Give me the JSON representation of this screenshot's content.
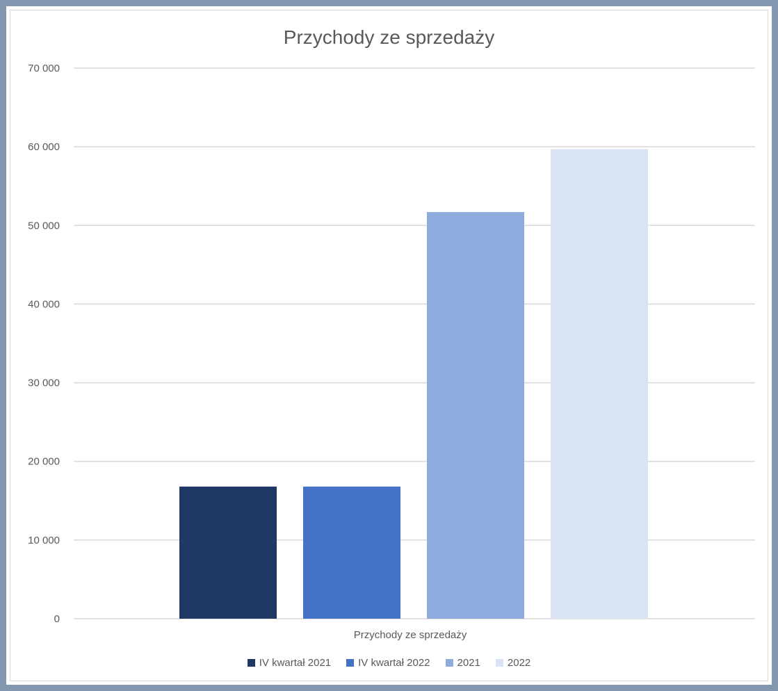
{
  "chart_data": {
    "type": "bar",
    "title": "Przychody ze sprzedaży",
    "categories": [
      "Przychody ze sprzedaży"
    ],
    "ylim": [
      0,
      70000
    ],
    "yticks": [
      {
        "value": 0,
        "label": "0"
      },
      {
        "value": 10000,
        "label": "10 000"
      },
      {
        "value": 20000,
        "label": "20 000"
      },
      {
        "value": 30000,
        "label": "30 000"
      },
      {
        "value": 40000,
        "label": "40 000"
      },
      {
        "value": 50000,
        "label": "50 000"
      },
      {
        "value": 60000,
        "label": "60 000"
      },
      {
        "value": 70000,
        "label": "70 000"
      }
    ],
    "grid": true,
    "legend_position": "bottom",
    "series": [
      {
        "name": "IV kwartał 2021",
        "values": [
          16800
        ],
        "color": "#1f3864"
      },
      {
        "name": "IV kwartał 2022",
        "values": [
          16800
        ],
        "color": "#4472c4"
      },
      {
        "name": "2021",
        "values": [
          51700
        ],
        "color": "#8faadc"
      },
      {
        "name": "2022",
        "values": [
          59700
        ],
        "color": "#dae3f3"
      }
    ]
  },
  "colors": {
    "frame_border": "#8497b0",
    "gridline": "#d9d9d9",
    "text": "#595959"
  }
}
